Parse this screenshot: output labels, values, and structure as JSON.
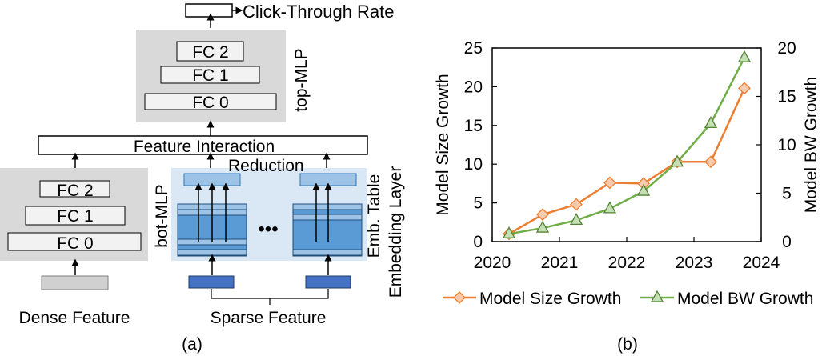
{
  "diagram": {
    "output_label": "Click-Through Rate",
    "top_mlp": {
      "label": "top-MLP",
      "layers": [
        "FC 2",
        "FC 1",
        "FC 0"
      ]
    },
    "feature_interaction": "Feature Interaction",
    "bot_mlp": {
      "label": "bot-MLP",
      "layers": [
        "FC 2",
        "FC 1",
        "FC 0"
      ]
    },
    "reduction_label": "Reduction",
    "ellipsis": "•••",
    "emb_table_label": "Emb. Table",
    "embedding_layer_label": "Embedding Layer",
    "dense_feature": "Dense Feature",
    "sparse_feature": "Sparse Feature",
    "caption": "(a)"
  },
  "chart_data": {
    "type": "line",
    "caption": "(b)",
    "x_ticks": [
      "2020",
      "2021",
      "2022",
      "2023",
      "2024"
    ],
    "xlim": [
      2020,
      2024
    ],
    "y_left": {
      "label": "Model Size Growth",
      "ticks": [
        "0",
        "5",
        "10",
        "15",
        "20",
        "25"
      ],
      "lim": [
        0,
        25
      ]
    },
    "y_right": {
      "label": "Model BW Growth",
      "ticks": [
        "0",
        "5",
        "10",
        "15",
        "20"
      ],
      "lim": [
        0,
        20
      ]
    },
    "series": [
      {
        "name": "Model Size Growth",
        "axis": "left",
        "color": "#ed7d31",
        "marker": "diamond",
        "marker_fill": "#f8cbad",
        "x": [
          2020.25,
          2020.75,
          2021.25,
          2021.75,
          2022.25,
          2022.75,
          2023.25,
          2023.75
        ],
        "y": [
          1.0,
          3.5,
          4.8,
          7.6,
          7.5,
          10.3,
          10.3,
          19.8
        ]
      },
      {
        "name": "Model BW Growth",
        "axis": "right",
        "color": "#70ad47",
        "marker": "triangle",
        "marker_fill": "#c5e0b4",
        "x": [
          2020.25,
          2020.75,
          2021.25,
          2021.75,
          2022.25,
          2022.75,
          2023.25,
          2023.75
        ],
        "y": [
          0.8,
          1.4,
          2.2,
          3.4,
          5.2,
          8.2,
          12.2,
          19.0
        ]
      }
    ],
    "legend": [
      "Model Size Growth",
      "Model BW Growth"
    ]
  }
}
